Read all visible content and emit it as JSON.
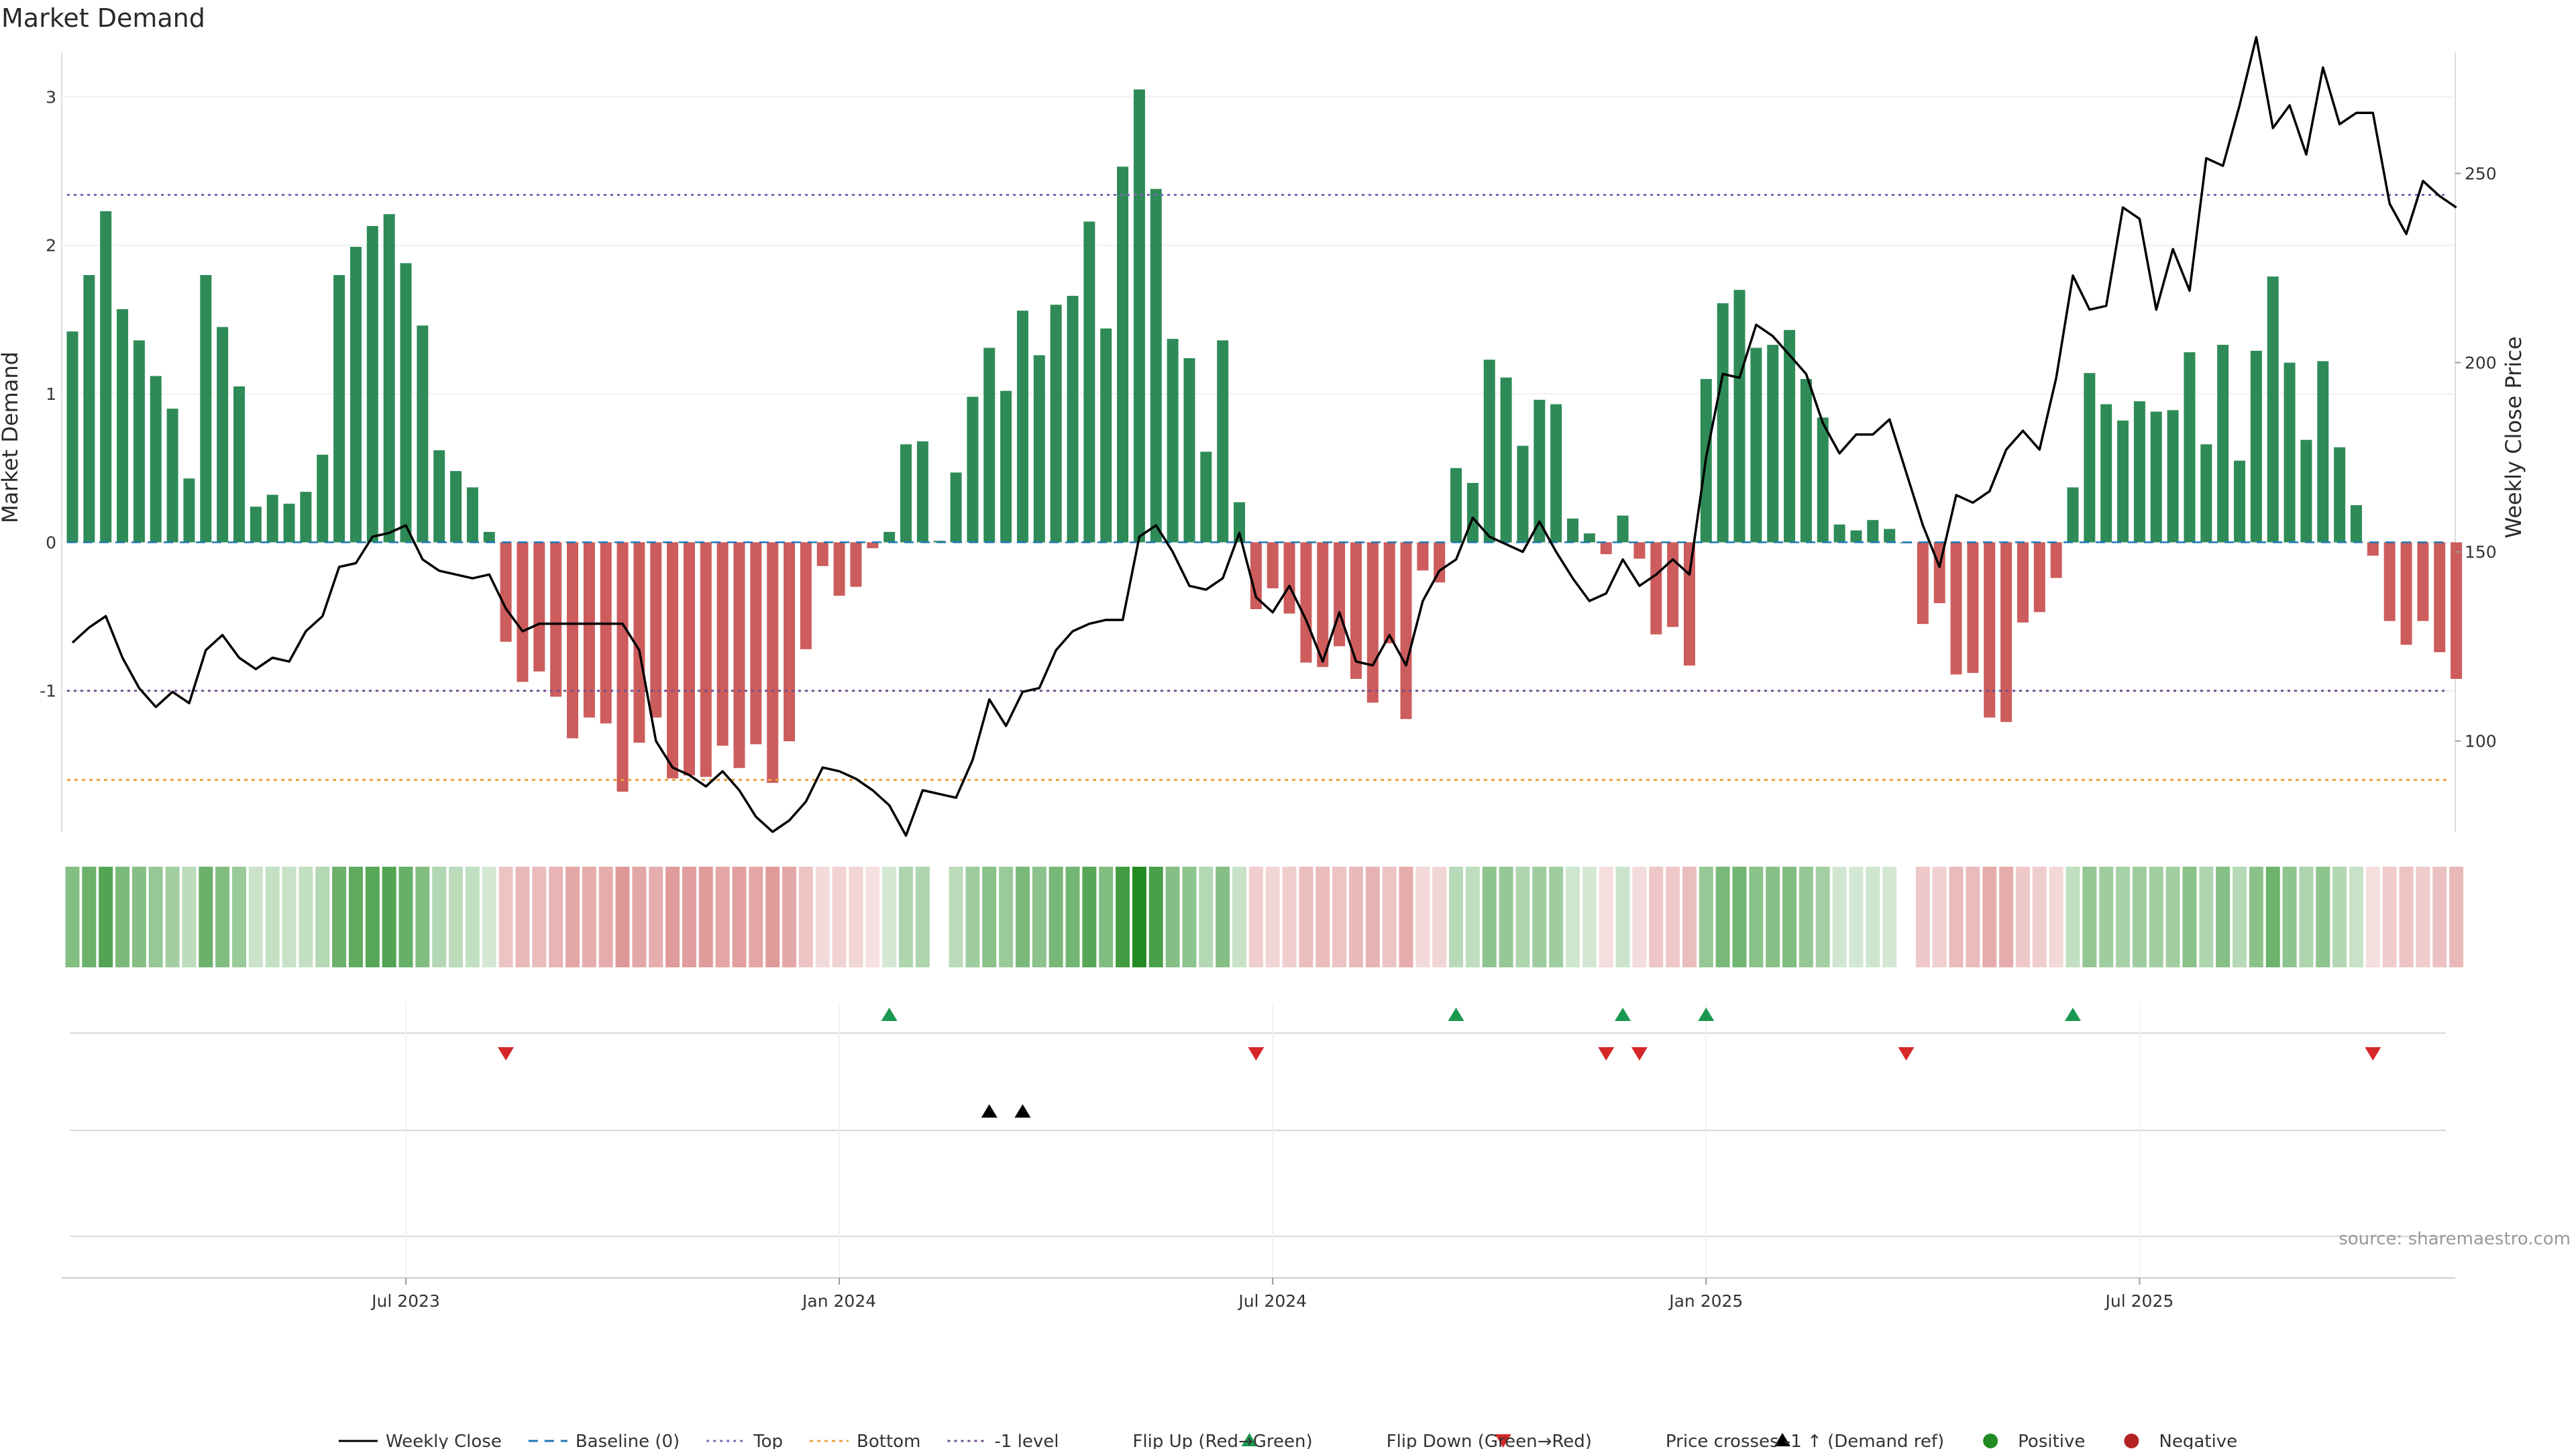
{
  "title": "Market Demand",
  "source": "source: sharemaestro.com",
  "colors": {
    "positive_bar": "#2e8b57",
    "negative_bar": "#cd5c5c",
    "price_line": "#000000",
    "top_line": "#7b68b5",
    "bottom_line": "#f0a040",
    "minus1_line": "#705090",
    "baseline": "#1f77b4",
    "flip_up": "#1a9850",
    "flip_down": "#d62728",
    "cross": "#000000",
    "positive_dot": "#228b22",
    "negative_dot": "#b22222"
  },
  "legend": [
    {
      "key": "weekly_close",
      "label": "Weekly Close"
    },
    {
      "key": "baseline",
      "label": "Baseline (0)"
    },
    {
      "key": "top",
      "label": "Top"
    },
    {
      "key": "bottom",
      "label": "Bottom"
    },
    {
      "key": "minus1",
      "label": "-1 level"
    },
    {
      "key": "flip_up",
      "label": "Flip Up (Red→Green)"
    },
    {
      "key": "flip_down",
      "label": "Flip Down (Green→Red)"
    },
    {
      "key": "cross",
      "label": "Price crosses -1 ↑ (Demand ref)"
    },
    {
      "key": "positive",
      "label": "Positive"
    },
    {
      "key": "negative",
      "label": "Negative"
    }
  ],
  "chart_data": {
    "type": "bar",
    "title": "Market Demand",
    "ylabel": "Market Demand",
    "y2label": "Weekly Close Price",
    "ylim": [
      -1.95,
      3.3
    ],
    "y2lim": [
      76,
      282
    ],
    "yticks": [
      -1,
      0,
      1,
      2,
      3
    ],
    "y2ticks": [
      100,
      150,
      200,
      250
    ],
    "xticks": [
      "Jul 2023",
      "Jan 2024",
      "Jul 2024",
      "Jan 2025",
      "Jul 2025"
    ],
    "xtick_weeks": [
      20,
      46,
      72,
      98,
      124
    ],
    "top_level": 2.34,
    "bottom_level": -1.6,
    "minus1_level": -1,
    "demand": [
      1.42,
      1.8,
      2.23,
      1.57,
      1.36,
      1.12,
      0.9,
      0.43,
      1.8,
      1.45,
      1.05,
      0.24,
      0.32,
      0.26,
      0.34,
      0.59,
      1.8,
      1.99,
      2.13,
      2.21,
      1.88,
      1.46,
      0.62,
      0.48,
      0.37,
      0.07,
      -0.67,
      -0.94,
      -0.87,
      -1.04,
      -1.32,
      -1.18,
      -1.22,
      -1.68,
      -1.35,
      -1.18,
      -1.59,
      -1.57,
      -1.58,
      -1.37,
      -1.52,
      -1.36,
      -1.62,
      -1.34,
      -0.72,
      -0.16,
      -0.36,
      -0.3,
      -0.04,
      0.07,
      0.66,
      0.68,
      0.01,
      0.47,
      0.98,
      1.31,
      1.02,
      1.56,
      1.26,
      1.6,
      1.66,
      2.16,
      1.44,
      2.53,
      3.05,
      2.38,
      1.37,
      1.24,
      0.61,
      1.36,
      0.27,
      -0.45,
      -0.31,
      -0.48,
      -0.81,
      -0.84,
      -0.7,
      -0.92,
      -1.08,
      -0.68,
      -1.19,
      -0.19,
      -0.27,
      0.5,
      0.4,
      1.23,
      1.11,
      0.65,
      0.96,
      0.93,
      0.16,
      0.06,
      -0.08,
      0.18,
      -0.11,
      -0.62,
      -0.57,
      -0.83,
      1.1,
      1.61,
      1.7,
      1.31,
      1.33,
      1.43,
      1.1,
      0.84,
      0.12,
      0.08,
      0.15,
      0.09,
      0,
      -0.55,
      -0.41,
      -0.89,
      -0.88,
      -1.18,
      -1.21,
      -0.54,
      -0.47,
      -0.24,
      0.37,
      1.14,
      0.93,
      0.82,
      0.95,
      0.88,
      0.89,
      1.28,
      0.66,
      1.33,
      0.55,
      1.29,
      1.79,
      1.21,
      0.69,
      1.22,
      0.64,
      0.25,
      -0.09,
      -0.53,
      -0.69,
      -0.53,
      -0.74,
      -0.92
    ],
    "price": [
      126,
      130,
      133,
      122,
      114,
      109,
      113,
      110,
      124,
      128,
      122,
      119,
      122,
      121,
      129,
      133,
      146,
      147,
      154,
      155,
      157,
      148,
      145,
      144,
      143,
      144,
      135,
      129,
      131,
      131,
      131,
      131,
      131,
      131,
      124,
      100,
      93,
      91,
      88,
      92,
      87,
      80,
      76,
      79,
      84,
      93,
      92,
      90,
      87,
      83,
      75,
      87,
      86,
      85,
      95,
      111,
      104,
      113,
      114,
      124,
      129,
      131,
      132,
      132,
      154,
      157,
      150,
      141,
      140,
      143,
      155,
      138,
      134,
      141,
      132,
      121,
      134,
      121,
      120,
      128,
      120,
      137,
      145,
      148,
      159,
      154,
      152,
      150,
      158,
      150,
      143,
      137,
      139,
      148,
      141,
      144,
      148,
      144,
      175,
      197,
      196,
      210,
      207,
      202,
      197,
      184,
      176,
      181,
      181,
      185,
      171,
      157,
      146,
      165,
      163,
      166,
      177,
      182,
      177,
      196,
      223,
      214,
      215,
      241,
      238,
      214,
      230,
      219,
      254,
      252,
      268,
      286,
      262,
      268,
      255,
      278,
      263,
      266,
      266,
      242,
      234,
      248,
      244,
      241
    ]
  }
}
